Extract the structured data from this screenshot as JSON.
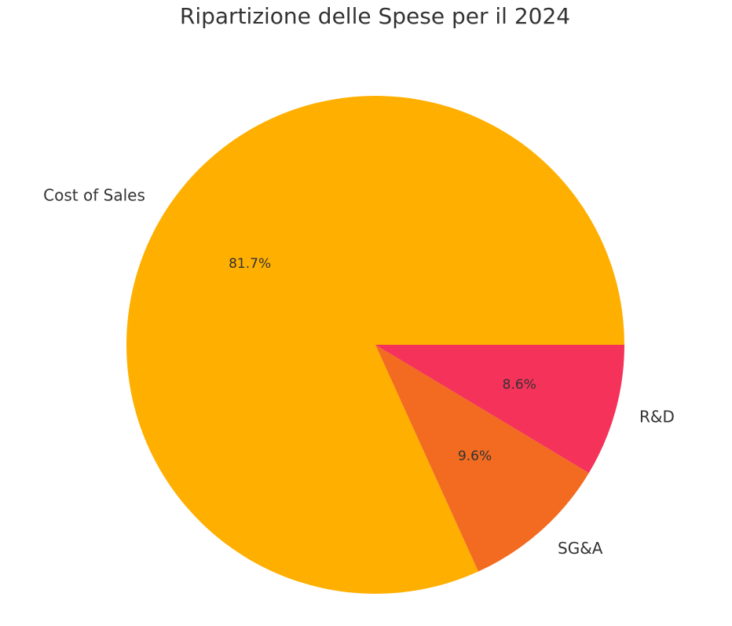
{
  "chart_data": {
    "type": "pie",
    "title": "Ripartizione delle Spese per il 2024",
    "start_angle_deg": 0,
    "direction": "counterclockwise",
    "slices": [
      {
        "label": "Cost of Sales",
        "value": 81.7,
        "pct_label": "81.7%",
        "color": "#FFAF00"
      },
      {
        "label": "SG&A",
        "value": 9.6,
        "pct_label": "9.6%",
        "color": "#F26B21"
      },
      {
        "label": "R&D",
        "value": 8.6,
        "pct_label": "8.6%",
        "color": "#F53259"
      }
    ]
  }
}
